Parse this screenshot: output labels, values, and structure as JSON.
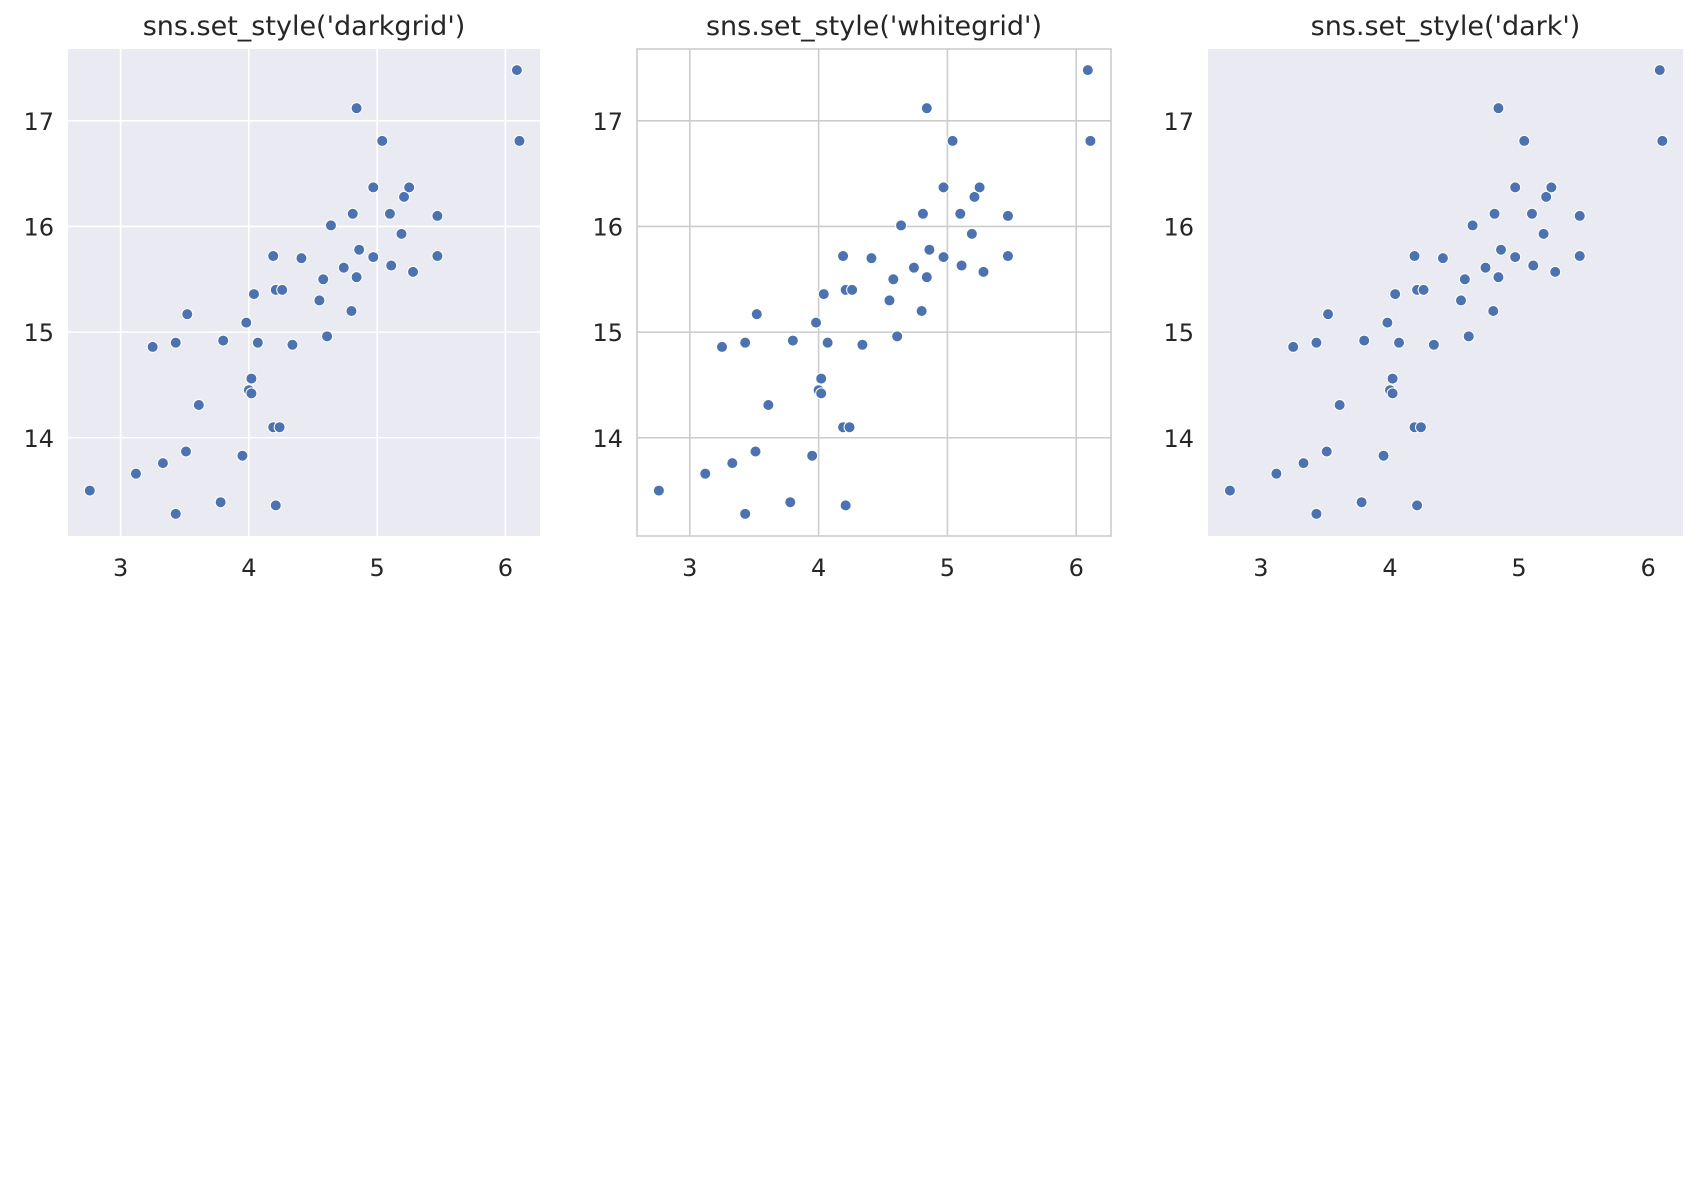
{
  "chart_data": [
    {
      "type": "scatter",
      "title": "sns.set_style('darkgrid')",
      "style": "darkgrid",
      "grid": true,
      "background_color": "#eaeaf2",
      "grid_color": "#ffffff",
      "marker_color": "#4c72b0",
      "xlim": [
        2.59,
        6.27
      ],
      "ylim": [
        13.07,
        17.68
      ],
      "xticks": [
        3,
        4,
        5,
        6
      ],
      "yticks": [
        14,
        15,
        16,
        17
      ],
      "xlabel": "",
      "ylabel": "",
      "points": [
        {
          "x": 2.76,
          "y": 13.5
        },
        {
          "x": 3.12,
          "y": 13.66
        },
        {
          "x": 3.33,
          "y": 13.76
        },
        {
          "x": 3.43,
          "y": 13.28
        },
        {
          "x": 3.51,
          "y": 13.87
        },
        {
          "x": 3.78,
          "y": 13.39
        },
        {
          "x": 3.95,
          "y": 13.83
        },
        {
          "x": 4.21,
          "y": 13.36
        },
        {
          "x": 3.25,
          "y": 14.86
        },
        {
          "x": 3.43,
          "y": 14.9
        },
        {
          "x": 3.52,
          "y": 15.17
        },
        {
          "x": 3.61,
          "y": 14.31
        },
        {
          "x": 3.8,
          "y": 14.92
        },
        {
          "x": 3.98,
          "y": 15.09
        },
        {
          "x": 4.0,
          "y": 14.45
        },
        {
          "x": 4.02,
          "y": 14.42
        },
        {
          "x": 4.02,
          "y": 14.56
        },
        {
          "x": 4.04,
          "y": 15.36
        },
        {
          "x": 4.07,
          "y": 14.9
        },
        {
          "x": 4.19,
          "y": 14.1
        },
        {
          "x": 4.24,
          "y": 14.1
        },
        {
          "x": 4.19,
          "y": 15.72
        },
        {
          "x": 4.21,
          "y": 15.4
        },
        {
          "x": 4.26,
          "y": 15.4
        },
        {
          "x": 4.34,
          "y": 14.88
        },
        {
          "x": 4.41,
          "y": 15.7
        },
        {
          "x": 4.55,
          "y": 15.3
        },
        {
          "x": 4.58,
          "y": 15.5
        },
        {
          "x": 4.61,
          "y": 14.96
        },
        {
          "x": 4.64,
          "y": 16.01
        },
        {
          "x": 4.74,
          "y": 15.61
        },
        {
          "x": 4.8,
          "y": 15.2
        },
        {
          "x": 4.81,
          "y": 16.12
        },
        {
          "x": 4.84,
          "y": 15.52
        },
        {
          "x": 4.86,
          "y": 15.78
        },
        {
          "x": 4.84,
          "y": 17.12
        },
        {
          "x": 4.97,
          "y": 15.71
        },
        {
          "x": 4.97,
          "y": 16.37
        },
        {
          "x": 5.04,
          "y": 16.81
        },
        {
          "x": 5.1,
          "y": 16.12
        },
        {
          "x": 5.11,
          "y": 15.63
        },
        {
          "x": 5.19,
          "y": 15.93
        },
        {
          "x": 5.21,
          "y": 16.28
        },
        {
          "x": 5.25,
          "y": 16.37
        },
        {
          "x": 5.28,
          "y": 15.57
        },
        {
          "x": 5.47,
          "y": 16.1
        },
        {
          "x": 5.47,
          "y": 15.72
        },
        {
          "x": 6.09,
          "y": 17.48
        },
        {
          "x": 6.11,
          "y": 16.81
        }
      ]
    },
    {
      "type": "scatter",
      "title": "sns.set_style('whitegrid')",
      "style": "whitegrid",
      "grid": true,
      "background_color": "#ffffff",
      "grid_color": "#cccccc",
      "spine_color": "#cccccc",
      "marker_color": "#4c72b0",
      "xlim": [
        2.59,
        6.27
      ],
      "ylim": [
        13.07,
        17.68
      ],
      "xticks": [
        3,
        4,
        5,
        6
      ],
      "yticks": [
        14,
        15,
        16,
        17
      ],
      "xlabel": "",
      "ylabel": "",
      "points": [
        {
          "x": 2.76,
          "y": 13.5
        },
        {
          "x": 3.12,
          "y": 13.66
        },
        {
          "x": 3.33,
          "y": 13.76
        },
        {
          "x": 3.43,
          "y": 13.28
        },
        {
          "x": 3.51,
          "y": 13.87
        },
        {
          "x": 3.78,
          "y": 13.39
        },
        {
          "x": 3.95,
          "y": 13.83
        },
        {
          "x": 4.21,
          "y": 13.36
        },
        {
          "x": 3.25,
          "y": 14.86
        },
        {
          "x": 3.43,
          "y": 14.9
        },
        {
          "x": 3.52,
          "y": 15.17
        },
        {
          "x": 3.61,
          "y": 14.31
        },
        {
          "x": 3.8,
          "y": 14.92
        },
        {
          "x": 3.98,
          "y": 15.09
        },
        {
          "x": 4.0,
          "y": 14.45
        },
        {
          "x": 4.02,
          "y": 14.42
        },
        {
          "x": 4.02,
          "y": 14.56
        },
        {
          "x": 4.04,
          "y": 15.36
        },
        {
          "x": 4.07,
          "y": 14.9
        },
        {
          "x": 4.19,
          "y": 14.1
        },
        {
          "x": 4.24,
          "y": 14.1
        },
        {
          "x": 4.19,
          "y": 15.72
        },
        {
          "x": 4.21,
          "y": 15.4
        },
        {
          "x": 4.26,
          "y": 15.4
        },
        {
          "x": 4.34,
          "y": 14.88
        },
        {
          "x": 4.41,
          "y": 15.7
        },
        {
          "x": 4.55,
          "y": 15.3
        },
        {
          "x": 4.58,
          "y": 15.5
        },
        {
          "x": 4.61,
          "y": 14.96
        },
        {
          "x": 4.64,
          "y": 16.01
        },
        {
          "x": 4.74,
          "y": 15.61
        },
        {
          "x": 4.8,
          "y": 15.2
        },
        {
          "x": 4.81,
          "y": 16.12
        },
        {
          "x": 4.84,
          "y": 15.52
        },
        {
          "x": 4.86,
          "y": 15.78
        },
        {
          "x": 4.84,
          "y": 17.12
        },
        {
          "x": 4.97,
          "y": 15.71
        },
        {
          "x": 4.97,
          "y": 16.37
        },
        {
          "x": 5.04,
          "y": 16.81
        },
        {
          "x": 5.1,
          "y": 16.12
        },
        {
          "x": 5.11,
          "y": 15.63
        },
        {
          "x": 5.19,
          "y": 15.93
        },
        {
          "x": 5.21,
          "y": 16.28
        },
        {
          "x": 5.25,
          "y": 16.37
        },
        {
          "x": 5.28,
          "y": 15.57
        },
        {
          "x": 5.47,
          "y": 16.1
        },
        {
          "x": 5.47,
          "y": 15.72
        },
        {
          "x": 6.09,
          "y": 17.48
        },
        {
          "x": 6.11,
          "y": 16.81
        }
      ]
    },
    {
      "type": "scatter",
      "title": "sns.set_style('dark')",
      "style": "dark",
      "grid": false,
      "background_color": "#eaeaf2",
      "marker_color": "#4c72b0",
      "xlim": [
        2.59,
        6.27
      ],
      "ylim": [
        13.07,
        17.68
      ],
      "xticks": [
        3,
        4,
        5,
        6
      ],
      "yticks": [
        14,
        15,
        16,
        17
      ],
      "xlabel": "",
      "ylabel": "",
      "points": [
        {
          "x": 2.76,
          "y": 13.5
        },
        {
          "x": 3.12,
          "y": 13.66
        },
        {
          "x": 3.33,
          "y": 13.76
        },
        {
          "x": 3.43,
          "y": 13.28
        },
        {
          "x": 3.51,
          "y": 13.87
        },
        {
          "x": 3.78,
          "y": 13.39
        },
        {
          "x": 3.95,
          "y": 13.83
        },
        {
          "x": 4.21,
          "y": 13.36
        },
        {
          "x": 3.25,
          "y": 14.86
        },
        {
          "x": 3.43,
          "y": 14.9
        },
        {
          "x": 3.52,
          "y": 15.17
        },
        {
          "x": 3.61,
          "y": 14.31
        },
        {
          "x": 3.8,
          "y": 14.92
        },
        {
          "x": 3.98,
          "y": 15.09
        },
        {
          "x": 4.0,
          "y": 14.45
        },
        {
          "x": 4.02,
          "y": 14.42
        },
        {
          "x": 4.02,
          "y": 14.56
        },
        {
          "x": 4.04,
          "y": 15.36
        },
        {
          "x": 4.07,
          "y": 14.9
        },
        {
          "x": 4.19,
          "y": 14.1
        },
        {
          "x": 4.24,
          "y": 14.1
        },
        {
          "x": 4.19,
          "y": 15.72
        },
        {
          "x": 4.21,
          "y": 15.4
        },
        {
          "x": 4.26,
          "y": 15.4
        },
        {
          "x": 4.34,
          "y": 14.88
        },
        {
          "x": 4.41,
          "y": 15.7
        },
        {
          "x": 4.55,
          "y": 15.3
        },
        {
          "x": 4.58,
          "y": 15.5
        },
        {
          "x": 4.61,
          "y": 14.96
        },
        {
          "x": 4.64,
          "y": 16.01
        },
        {
          "x": 4.74,
          "y": 15.61
        },
        {
          "x": 4.8,
          "y": 15.2
        },
        {
          "x": 4.81,
          "y": 16.12
        },
        {
          "x": 4.84,
          "y": 15.52
        },
        {
          "x": 4.86,
          "y": 15.78
        },
        {
          "x": 4.84,
          "y": 17.12
        },
        {
          "x": 4.97,
          "y": 15.71
        },
        {
          "x": 4.97,
          "y": 16.37
        },
        {
          "x": 5.04,
          "y": 16.81
        },
        {
          "x": 5.1,
          "y": 16.12
        },
        {
          "x": 5.11,
          "y": 15.63
        },
        {
          "x": 5.19,
          "y": 15.93
        },
        {
          "x": 5.21,
          "y": 16.28
        },
        {
          "x": 5.25,
          "y": 16.37
        },
        {
          "x": 5.28,
          "y": 15.57
        },
        {
          "x": 5.47,
          "y": 16.1
        },
        {
          "x": 5.47,
          "y": 15.72
        },
        {
          "x": 6.09,
          "y": 17.48
        },
        {
          "x": 6.11,
          "y": 16.81
        }
      ]
    }
  ]
}
